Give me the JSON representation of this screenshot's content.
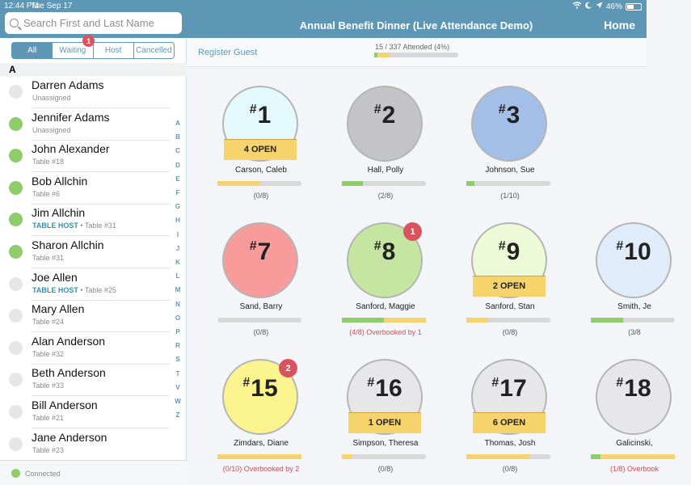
{
  "status": {
    "time": "12:44 PM",
    "date": "Tue Sep 17",
    "battery": "46%"
  },
  "nav": {
    "title": "Annual Benefit Dinner (Live Attendance Demo)",
    "home": "Home"
  },
  "search": {
    "placeholder": "Search First and Last Name"
  },
  "filters": [
    {
      "label": "All",
      "active": true
    },
    {
      "label": "Waiting",
      "badge": "1"
    },
    {
      "label": "Host"
    },
    {
      "label": "Cancelled"
    }
  ],
  "section": "A",
  "guests": [
    {
      "name": "Darren Adams",
      "sub": "Unassigned",
      "status": "none"
    },
    {
      "name": "Jennifer Adams",
      "sub": "Unassigned",
      "status": "in"
    },
    {
      "name": "John Alexander",
      "sub": "Table #18",
      "status": "in"
    },
    {
      "name": "Bob Allchin",
      "sub": "Table #6",
      "status": "in"
    },
    {
      "name": "Jim Allchin",
      "host": "TABLE HOST",
      "sub": " • Table #31",
      "status": "in"
    },
    {
      "name": "Sharon Allchin",
      "sub": "Table #31",
      "status": "in"
    },
    {
      "name": "Joe Allen",
      "host": "TABLE HOST",
      "sub": " • Table #25",
      "status": "none"
    },
    {
      "name": "Mary Allen",
      "sub": "Table #24",
      "status": "none"
    },
    {
      "name": "Alan Anderson",
      "sub": "Table #32",
      "status": "none"
    },
    {
      "name": "Beth Anderson",
      "sub": "Table #33",
      "status": "none"
    },
    {
      "name": "Bill Anderson",
      "sub": "Table #21",
      "status": "none"
    },
    {
      "name": "Jane Anderson",
      "sub": "Table #23",
      "status": "none"
    }
  ],
  "index_letters": [
    "A",
    "B",
    "C",
    "D",
    "E",
    "F",
    "G",
    "H",
    "I",
    "J",
    "K",
    "L",
    "M",
    "N",
    "O",
    "P",
    "R",
    "S",
    "T",
    "V",
    "W",
    "Z"
  ],
  "footer": {
    "status": "Connected"
  },
  "main": {
    "register": "Register Guest",
    "attendance": {
      "label": "15 / 337 Attended (4%)",
      "attended_frac": 0.04,
      "reserved_frac": 0.14
    }
  },
  "tables": [
    {
      "number": "1",
      "host": "Carson, Caleb",
      "count": "(0/8)",
      "open": "4 OPEN",
      "color": "#e4f9fc",
      "attended": 0.0,
      "reserved": 0.5
    },
    {
      "number": "2",
      "host": "Hall, Polly",
      "count": "(2/8)",
      "color": "#c4c4c6",
      "attended": 0.25,
      "reserved": 0.0
    },
    {
      "number": "3",
      "host": "Johnson, Sue",
      "count": "(1/10)",
      "color": "#a3bfe8",
      "attended": 0.1,
      "reserved": 0.0
    },
    {
      "number": "7",
      "host": "Sand, Barry",
      "count": "(0/8)",
      "color": "#f79b9b",
      "attended": 0.0,
      "reserved": 0.0
    },
    {
      "number": "8",
      "host": "Sanford, Maggie",
      "count": "(4/8) Overbooked by 1",
      "over": true,
      "badge": "1",
      "color": "#c4e6a1",
      "attended": 0.5,
      "reserved": 0.5
    },
    {
      "number": "9",
      "host": "Sanford, Stan",
      "count": "(0/8)",
      "open": "2 OPEN",
      "color": "#edfad8",
      "attended": 0.0,
      "reserved": 0.25
    },
    {
      "number": "10",
      "host": "Smith, Je",
      "count": "(3/8",
      "color": "#e1ecfb",
      "attended": 0.38,
      "reserved": 0.0
    },
    {
      "number": "15",
      "host": "Zimdars, Diane",
      "count": "(0/10) Overbooked by 2",
      "over": true,
      "badge": "2",
      "color": "#fbf48e",
      "attended": 0.0,
      "reserved": 1.0
    },
    {
      "number": "16",
      "host": "Simpson, Theresa",
      "count": "(0/8)",
      "open": "1 OPEN",
      "color": "#e7e7e9",
      "attended": 0.0,
      "reserved": 0.12
    },
    {
      "number": "17",
      "host": "Thomas, Josh",
      "count": "(0/8)",
      "open": "6 OPEN",
      "color": "#e7e7e9",
      "attended": 0.0,
      "reserved": 0.75
    },
    {
      "number": "18",
      "host": "Galicinski, ",
      "count": "(1/8) Overbook",
      "over": true,
      "color": "#e7e7e9",
      "attended": 0.12,
      "reserved": 0.88
    }
  ],
  "colors": {
    "accent": "#5e97b6",
    "checked_in": "#8fcc6a",
    "unchecked": "#e6e6e6",
    "open": "#f6d36b",
    "alert": "#d9525e"
  }
}
